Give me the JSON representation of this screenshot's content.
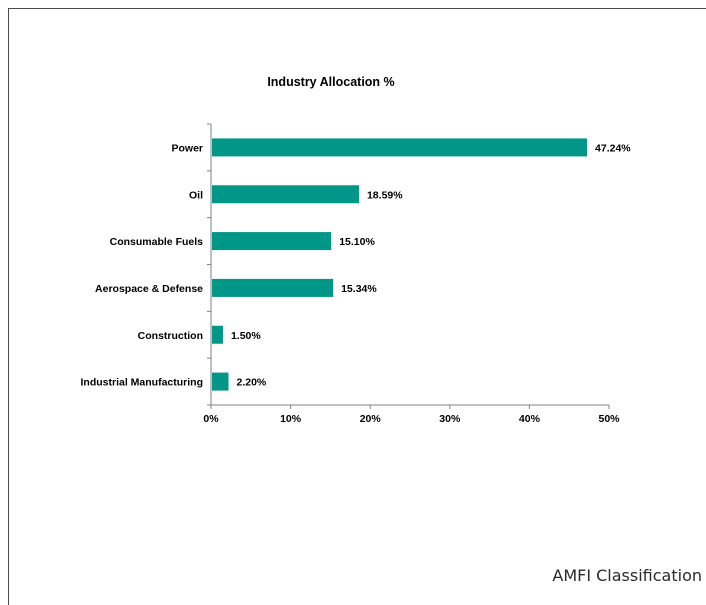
{
  "caption": "AMFI Classification",
  "colors": {
    "bar": "#009688",
    "axis": "#808080",
    "text": "#000000"
  },
  "chart_data": {
    "type": "bar",
    "orientation": "horizontal",
    "title": "Industry Allocation %",
    "categories": [
      "Power",
      "Oil",
      "Consumable Fuels",
      "Aerospace & Defense",
      "Construction",
      "Industrial Manufacturing"
    ],
    "values": [
      47.24,
      18.59,
      15.1,
      15.34,
      1.5,
      2.2
    ],
    "data_labels": [
      "47.24%",
      "18.59%",
      "15.10%",
      "15.34%",
      "1.50%",
      "2.20%"
    ],
    "xlim": [
      0,
      50
    ],
    "x_ticks": [
      0,
      10,
      20,
      30,
      40,
      50
    ],
    "x_tick_labels": [
      "0%",
      "10%",
      "20%",
      "30%",
      "40%",
      "50%"
    ],
    "xlabel": "",
    "ylabel": "",
    "grid": false,
    "legend": "none"
  }
}
